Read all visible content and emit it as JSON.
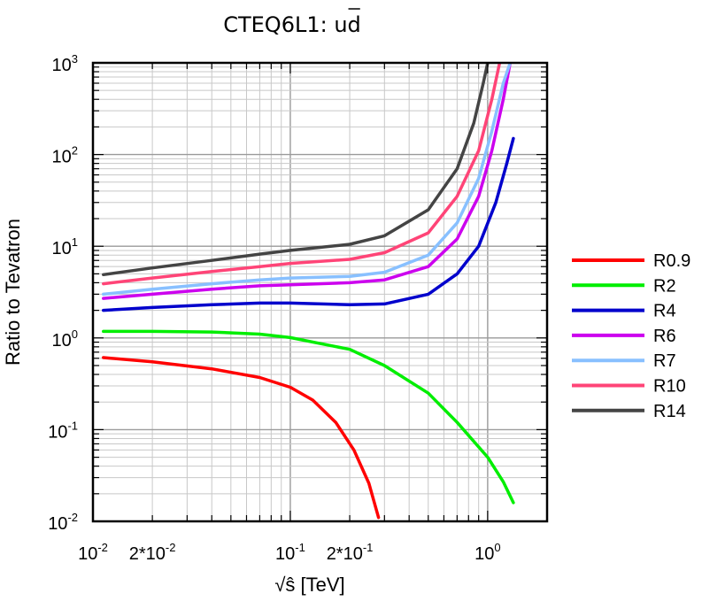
{
  "chart_data": {
    "type": "line",
    "title": "CTEQ6L1: ud",
    "title_overline_part": "d",
    "xlabel": "√ŝ  [TeV]",
    "ylabel": "Ratio to Tevatron",
    "xscale": "log",
    "yscale": "log",
    "xlim": [
      0.01,
      2.0
    ],
    "ylim": [
      0.01,
      1000
    ],
    "grid": true,
    "legend_position": "right",
    "x_tick_labels": [
      {
        "value": 0.01,
        "base": "10",
        "exp": "-2"
      },
      {
        "value": 0.02,
        "base": "2*10",
        "exp": "-2"
      },
      {
        "value": 0.1,
        "base": "10",
        "exp": "-1"
      },
      {
        "value": 0.2,
        "base": "2*10",
        "exp": "-1"
      },
      {
        "value": 1.0,
        "base": "10",
        "exp": "0"
      }
    ],
    "y_tick_labels": [
      {
        "value": 0.01,
        "base": "10",
        "exp": "-2"
      },
      {
        "value": 0.1,
        "base": "10",
        "exp": "-1"
      },
      {
        "value": 1,
        "base": "10",
        "exp": "0"
      },
      {
        "value": 10,
        "base": "10",
        "exp": "1"
      },
      {
        "value": 100,
        "base": "10",
        "exp": "2"
      },
      {
        "value": 1000,
        "base": "10",
        "exp": "3"
      }
    ],
    "series": [
      {
        "name": "R0.9",
        "color": "#ff0000",
        "points": [
          [
            0.0113,
            0.61
          ],
          [
            0.02,
            0.55
          ],
          [
            0.04,
            0.46
          ],
          [
            0.07,
            0.37
          ],
          [
            0.1,
            0.29
          ],
          [
            0.13,
            0.21
          ],
          [
            0.17,
            0.12
          ],
          [
            0.21,
            0.06
          ],
          [
            0.25,
            0.026
          ],
          [
            0.28,
            0.011
          ]
        ]
      },
      {
        "name": "R2",
        "color": "#00ee00",
        "points": [
          [
            0.0113,
            1.18
          ],
          [
            0.02,
            1.18
          ],
          [
            0.04,
            1.16
          ],
          [
            0.07,
            1.1
          ],
          [
            0.1,
            1.01
          ],
          [
            0.2,
            0.75
          ],
          [
            0.3,
            0.5
          ],
          [
            0.5,
            0.25
          ],
          [
            0.7,
            0.12
          ],
          [
            1.0,
            0.05
          ],
          [
            1.2,
            0.027
          ],
          [
            1.35,
            0.016
          ]
        ]
      },
      {
        "name": "R4",
        "color": "#0000cc",
        "points": [
          [
            0.0113,
            2.0
          ],
          [
            0.02,
            2.15
          ],
          [
            0.04,
            2.3
          ],
          [
            0.07,
            2.4
          ],
          [
            0.1,
            2.4
          ],
          [
            0.2,
            2.3
          ],
          [
            0.3,
            2.35
          ],
          [
            0.5,
            3.0
          ],
          [
            0.7,
            5.0
          ],
          [
            0.9,
            10
          ],
          [
            1.1,
            30
          ],
          [
            1.25,
            80
          ],
          [
            1.35,
            150
          ]
        ]
      },
      {
        "name": "R6",
        "color": "#cc00ee",
        "points": [
          [
            0.0113,
            2.7
          ],
          [
            0.02,
            3.0
          ],
          [
            0.04,
            3.4
          ],
          [
            0.07,
            3.7
          ],
          [
            0.1,
            3.8
          ],
          [
            0.2,
            4.0
          ],
          [
            0.3,
            4.3
          ],
          [
            0.5,
            6.0
          ],
          [
            0.7,
            12
          ],
          [
            0.9,
            35
          ],
          [
            1.05,
            110
          ],
          [
            1.2,
            400
          ],
          [
            1.3,
            1000
          ]
        ]
      },
      {
        "name": "R7",
        "color": "#88c0ff",
        "points": [
          [
            0.0113,
            3.0
          ],
          [
            0.02,
            3.4
          ],
          [
            0.04,
            3.9
          ],
          [
            0.07,
            4.3
          ],
          [
            0.1,
            4.5
          ],
          [
            0.2,
            4.7
          ],
          [
            0.3,
            5.2
          ],
          [
            0.5,
            8.0
          ],
          [
            0.7,
            18
          ],
          [
            0.9,
            55
          ],
          [
            1.05,
            180
          ],
          [
            1.2,
            600
          ],
          [
            1.3,
            1000
          ]
        ]
      },
      {
        "name": "R10",
        "color": "#ff4477",
        "points": [
          [
            0.0113,
            3.9
          ],
          [
            0.02,
            4.5
          ],
          [
            0.04,
            5.3
          ],
          [
            0.07,
            6.0
          ],
          [
            0.1,
            6.5
          ],
          [
            0.2,
            7.2
          ],
          [
            0.3,
            8.5
          ],
          [
            0.5,
            14
          ],
          [
            0.7,
            35
          ],
          [
            0.9,
            110
          ],
          [
            1.05,
            400
          ],
          [
            1.15,
            1000
          ]
        ]
      },
      {
        "name": "R14",
        "color": "#444444",
        "points": [
          [
            0.0113,
            4.9
          ],
          [
            0.02,
            5.8
          ],
          [
            0.04,
            7.0
          ],
          [
            0.07,
            8.2
          ],
          [
            0.1,
            9.0
          ],
          [
            0.2,
            10.5
          ],
          [
            0.3,
            13
          ],
          [
            0.5,
            25
          ],
          [
            0.7,
            70
          ],
          [
            0.85,
            220
          ],
          [
            0.95,
            600
          ],
          [
            1.0,
            1000
          ]
        ]
      }
    ]
  }
}
